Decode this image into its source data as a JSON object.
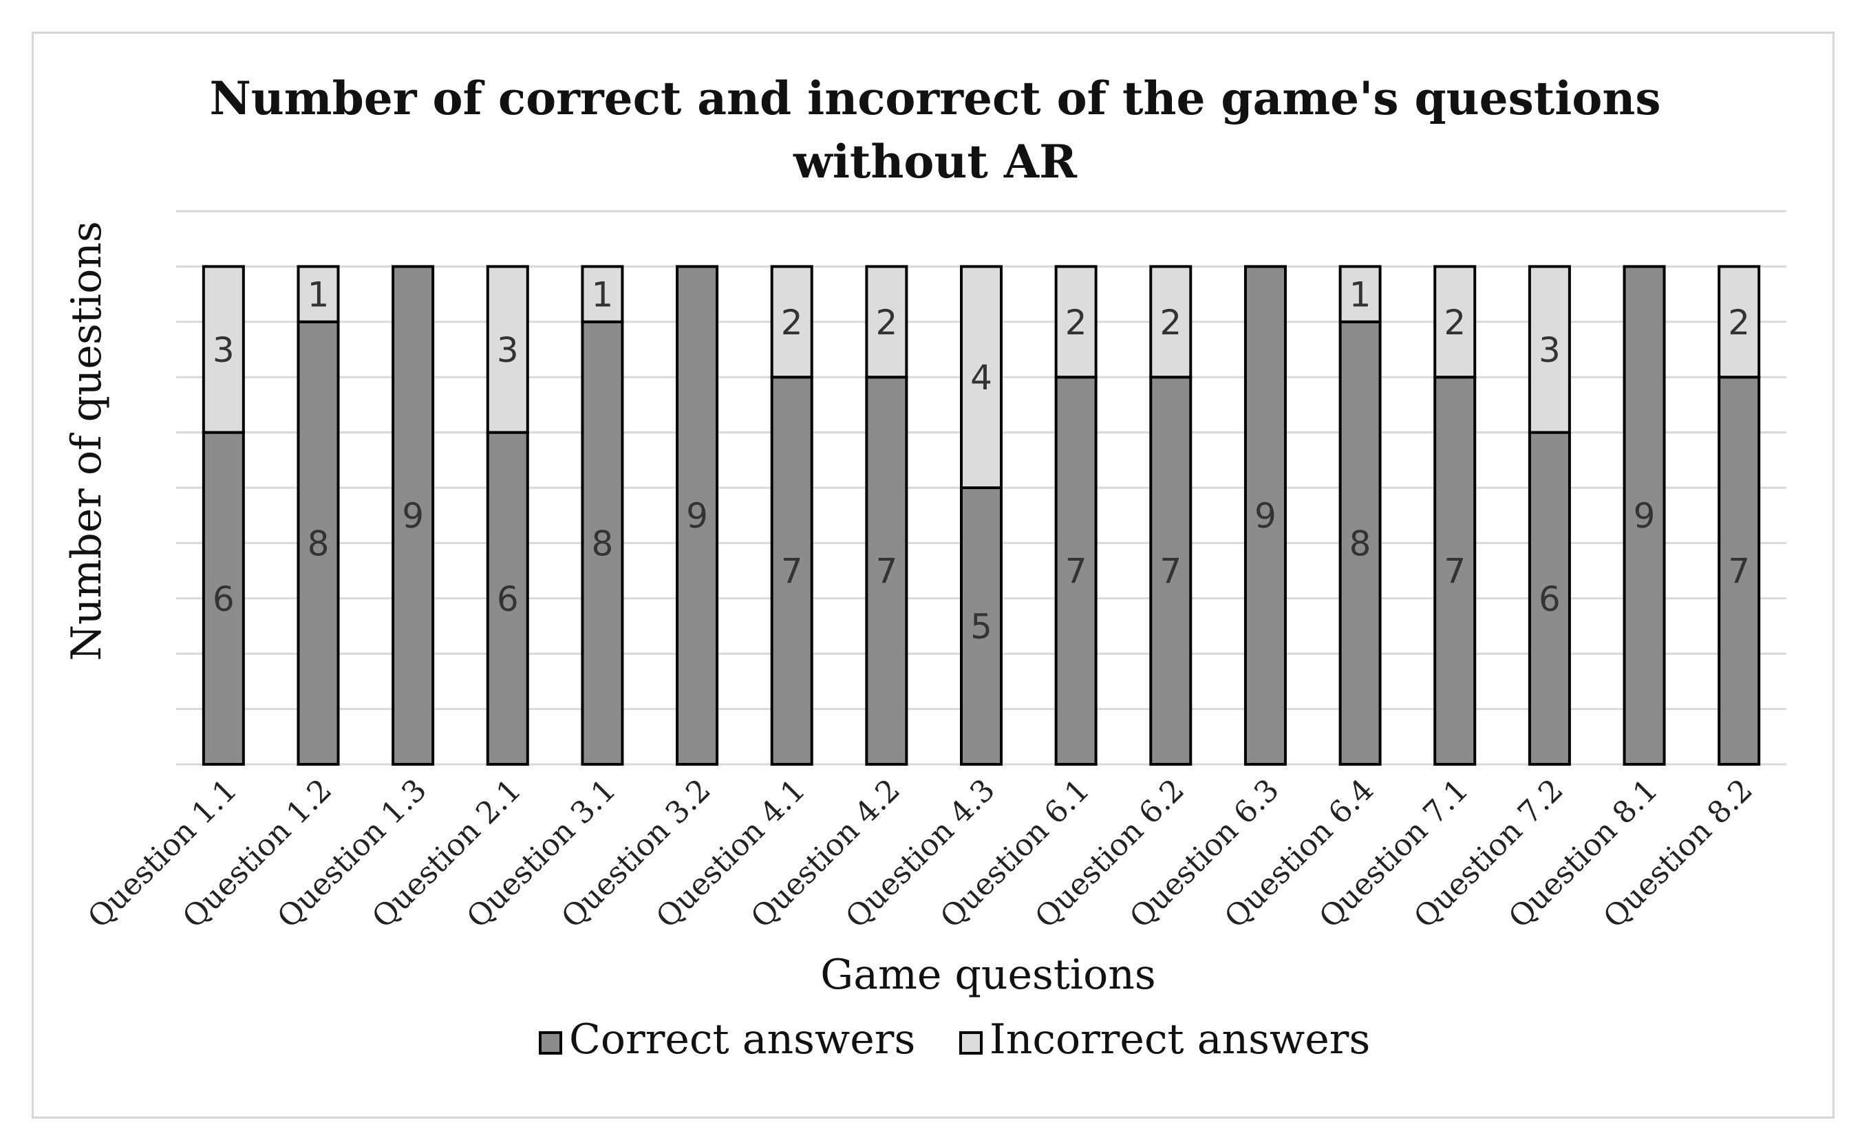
{
  "chart_data": {
    "type": "bar",
    "stacked": true,
    "title_lines": [
      "Number of correct and incorrect of the game's questions",
      "without AR"
    ],
    "xlabel": "Game questions",
    "ylabel": "Number of questions",
    "ylim": [
      0,
      10
    ],
    "grid": true,
    "legend_position": "bottom",
    "categories": [
      "Question 1.1",
      "Question 1.2",
      "Question 1.3",
      "Question 2.1",
      "Question 3.1",
      "Question 3.2",
      "Question 4.1",
      "Question 4.2",
      "Question 4.3",
      "Question 6.1",
      "Question 6.2",
      "Question 6.3",
      "Question 6.4",
      "Question 7.1",
      "Question 7.2",
      "Question 8.1",
      "Question 8.2"
    ],
    "series": [
      {
        "name": "Correct answers",
        "color": "#8c8c8c",
        "values": [
          6,
          8,
          9,
          6,
          8,
          9,
          7,
          7,
          5,
          7,
          7,
          9,
          8,
          7,
          6,
          9,
          7
        ]
      },
      {
        "name": "Incorrect answers",
        "color": "#dcdcdc",
        "values": [
          3,
          1,
          0,
          3,
          1,
          0,
          2,
          2,
          4,
          2,
          2,
          0,
          1,
          2,
          3,
          0,
          2
        ]
      }
    ]
  }
}
